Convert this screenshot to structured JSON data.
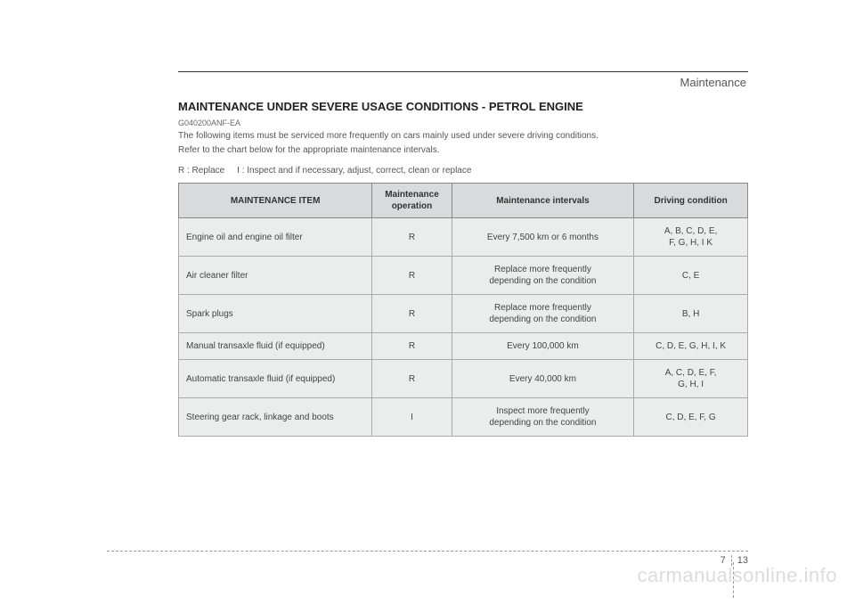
{
  "header": {
    "section_label": "Maintenance"
  },
  "heading": "MAINTENANCE UNDER SEVERE USAGE CONDITIONS - PETROL ENGINE",
  "code": "G040200ANF-EA",
  "intro_line1": "The following items must be serviced more frequently on cars mainly used under severe driving conditions.",
  "intro_line2": "Refer to the chart below for the appropriate maintenance intervals.",
  "legend": "R : Replace     I : Inspect and if necessary, adjust, correct, clean or replace",
  "table": {
    "columns": {
      "item": "MAINTENANCE ITEM",
      "operation": "Maintenance operation",
      "intervals": "Maintenance intervals",
      "condition": "Driving condition"
    },
    "rows": [
      {
        "item": "Engine oil and engine oil filter",
        "op": "R",
        "interval": "Every 7,500 km or 6 months",
        "cond": "A, B, C, D, E,\nF, G, H, I K"
      },
      {
        "item": "Air cleaner filter",
        "op": "R",
        "interval": "Replace more frequently\ndepending on the condition",
        "cond": "C, E"
      },
      {
        "item": "Spark plugs",
        "op": "R",
        "interval": "Replace more frequently\ndepending on the condition",
        "cond": "B, H"
      },
      {
        "item": "Manual transaxle fluid (if equipped)",
        "op": "R",
        "interval": "Every 100,000 km",
        "cond": "C, D, E, G, H, I, K"
      },
      {
        "item": "Automatic transaxle fluid (if equipped)",
        "op": "R",
        "interval": "Every 40,000 km",
        "cond": "A, C, D, E, F,\nG, H, I"
      },
      {
        "item": "Steering gear rack, linkage and boots",
        "op": "I",
        "interval": "Inspect more frequently\ndepending on the condition",
        "cond": "C, D, E, F, G"
      }
    ]
  },
  "footer": {
    "chapter": "7",
    "page": "13"
  },
  "watermark": "carmanualsonline.info",
  "styling": {
    "background_color": "#ffffff",
    "text_color": "#333333",
    "header_bg": "#d9dadb",
    "cell_bg": "#ebecec",
    "border_color": "#888888",
    "font_family": "Arial",
    "heading_fontsize": 13,
    "body_fontsize": 10,
    "watermark_color": "#dcdcdc"
  }
}
